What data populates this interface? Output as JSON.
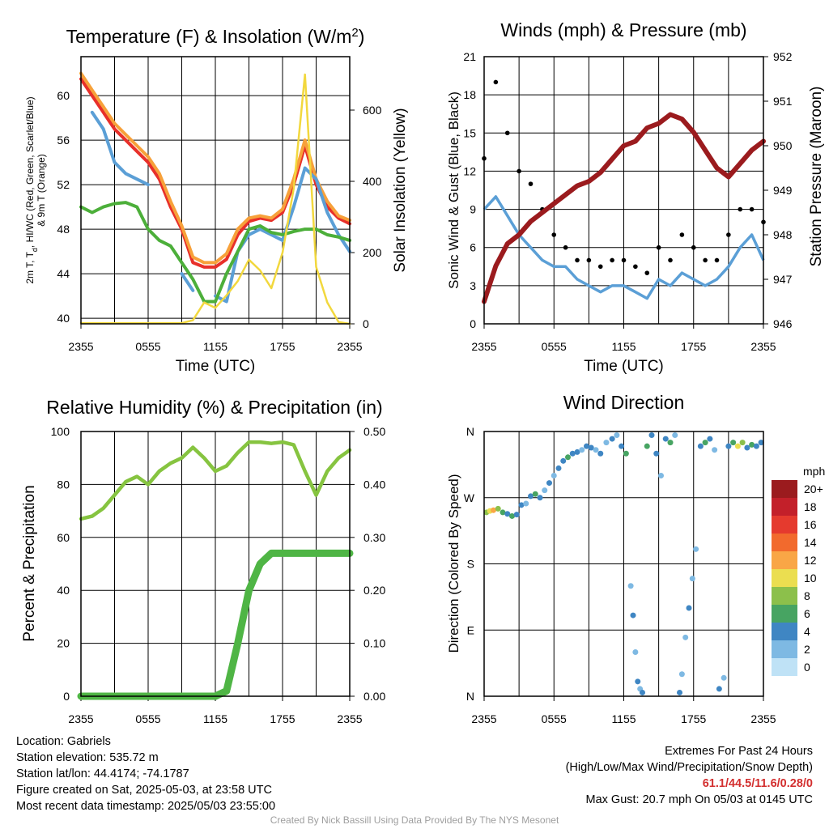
{
  "chart_data": [
    {
      "type": "line",
      "title_text": "Temperature (F) & Insolation (W/m",
      "title_sup": "2",
      "title_end": ")",
      "ylabel_lines": [
        "2m T, T",
        "d",
        ", HI/WC (Red, Green, Scarlet/Blue)",
        "& 9m T (Orange)"
      ],
      "y2label": "Solar Insolation (Yellow)",
      "xlabel": "Time (UTC)",
      "x_ticks": [
        "2355",
        "0555",
        "1155",
        "1755",
        "2355"
      ],
      "ylim": [
        39.5,
        63.5
      ],
      "y_ticks": [
        40,
        44,
        48,
        52,
        56,
        60
      ],
      "y2lim": [
        0,
        750
      ],
      "y2_ticks": [
        0,
        200,
        400,
        600
      ],
      "grid": true,
      "hours": [
        0,
        1,
        2,
        3,
        4,
        5,
        6,
        7,
        8,
        9,
        10,
        11,
        12,
        13,
        14,
        15,
        16,
        17,
        18,
        19,
        20,
        21,
        22,
        23,
        24
      ],
      "series": [
        {
          "color": "#e8302a",
          "axis": "left",
          "values": [
            61.5,
            60,
            58.5,
            57,
            56,
            55,
            54,
            52.5,
            50,
            48,
            45,
            44.6,
            44.6,
            45.3,
            47.5,
            48.7,
            49,
            48.8,
            49.5,
            52,
            55.5,
            52,
            50,
            49,
            48.5
          ]
        },
        {
          "color": "#f7a13a",
          "axis": "left",
          "values": [
            62,
            60.5,
            59,
            57.5,
            56.5,
            55.5,
            54.5,
            53,
            50.5,
            48.3,
            45.5,
            45,
            45,
            45.8,
            48,
            49,
            49.2,
            49,
            49.8,
            52.5,
            56,
            52.5,
            50.5,
            49.2,
            48.8
          ]
        },
        {
          "color": "#5b9fd6",
          "axis": "left",
          "values": [
            null,
            58.5,
            57,
            54,
            53,
            52.5,
            52,
            null,
            null,
            44,
            42.5,
            null,
            42,
            41.5,
            46,
            47.5,
            48,
            47.5,
            47,
            50,
            53.5,
            52.5,
            49.5,
            47.5,
            46
          ]
        },
        {
          "color": "#4caf3a",
          "axis": "left",
          "values": [
            50,
            49.5,
            50,
            50.3,
            50.4,
            50,
            48,
            47,
            46.5,
            45,
            43.5,
            41.5,
            41.5,
            44,
            46,
            48,
            48.3,
            47.7,
            47.5,
            47.8,
            48,
            48,
            47.5,
            47.3,
            47
          ]
        },
        {
          "color": "#f2d83e",
          "axis": "right",
          "values": [
            2,
            2,
            2,
            2,
            2,
            2,
            2,
            2,
            2,
            2,
            10,
            60,
            45,
            80,
            120,
            180,
            150,
            100,
            200,
            380,
            700,
            160,
            60,
            5,
            0
          ]
        }
      ]
    },
    {
      "type": "scatter",
      "title": "Winds (mph) & Pressure (mb)",
      "ylabel": "Sonic Wind & Gust (Blue, Black)",
      "y2label": "Station Pressure (Maroon)",
      "xlabel": "Time (UTC)",
      "x_ticks": [
        "2355",
        "0555",
        "1155",
        "1755",
        "2355"
      ],
      "ylim": [
        0,
        21
      ],
      "y_ticks": [
        0,
        3,
        6,
        9,
        12,
        15,
        18,
        21
      ],
      "y2lim": [
        946,
        952
      ],
      "y2_ticks": [
        946,
        947,
        948,
        949,
        950,
        951,
        952
      ],
      "grid": true,
      "hours": [
        0,
        1,
        2,
        3,
        4,
        5,
        6,
        7,
        8,
        9,
        10,
        11,
        12,
        13,
        14,
        15,
        16,
        17,
        18,
        19,
        20,
        21,
        22,
        23,
        24
      ],
      "wind_values": [
        9,
        10,
        8.5,
        7,
        6,
        5,
        4.5,
        4.5,
        3.5,
        3,
        2.5,
        3,
        3,
        2.5,
        2,
        3.5,
        3,
        4,
        3.5,
        3,
        3.5,
        4.5,
        6,
        7,
        5
      ],
      "gust_values": [
        13,
        19,
        15,
        12,
        11,
        9,
        7,
        6,
        5,
        5,
        4.5,
        5,
        5,
        4.5,
        4,
        6,
        5,
        7,
        6,
        5,
        5,
        7,
        9,
        9,
        8
      ],
      "pressure_values": [
        946.5,
        947.3,
        947.8,
        948.0,
        948.3,
        948.5,
        948.7,
        948.9,
        949.1,
        949.2,
        949.4,
        949.7,
        950.0,
        950.1,
        950.4,
        950.5,
        950.7,
        950.6,
        950.3,
        949.9,
        949.5,
        949.3,
        949.6,
        949.9,
        950.1
      ]
    },
    {
      "type": "line",
      "title": "Relative Humidity (%) & Precipitation (in)",
      "ylabel": "Percent & Precipitation",
      "xlabel": "",
      "x_ticks": [
        "2355",
        "0555",
        "1155",
        "1755",
        "2355"
      ],
      "ylim": [
        0,
        100
      ],
      "y_ticks": [
        0,
        20,
        40,
        60,
        80,
        100
      ],
      "y2lim": [
        0,
        0.5
      ],
      "y2_ticks": [
        "0.00",
        "0.10",
        "0.20",
        "0.30",
        "0.40",
        "0.50"
      ],
      "grid": true,
      "hours": [
        0,
        1,
        2,
        3,
        4,
        5,
        6,
        7,
        8,
        9,
        10,
        11,
        12,
        13,
        14,
        15,
        16,
        17,
        18,
        19,
        20,
        21,
        22,
        23,
        24
      ],
      "series": [
        {
          "name": "",
          "color": "#86c440",
          "axis": "left",
          "values": [
            67,
            68,
            71,
            76,
            81,
            83,
            80,
            85,
            88,
            90,
            94,
            90,
            85,
            87,
            92,
            96,
            96,
            95.5,
            96,
            95,
            85,
            76,
            85,
            90,
            93
          ]
        },
        {
          "name": "",
          "color": "#4fb545",
          "axis": "right",
          "values": [
            0,
            0,
            0,
            0,
            0,
            0,
            0,
            0,
            0,
            0,
            0,
            0,
            0,
            0.01,
            0.1,
            0.2,
            0.25,
            0.27,
            0.27,
            0.27,
            0.27,
            0.27,
            0.27,
            0.27,
            0.27
          ]
        }
      ]
    },
    {
      "type": "scatter",
      "title": "Wind Direction",
      "ylabel": "Direction (Colored By Speed)",
      "xlabel": "",
      "x_ticks": [
        "2355",
        "0555",
        "1155",
        "1755",
        "2355"
      ],
      "y_ticks": [
        "N",
        "E",
        "S",
        "W",
        "N"
      ],
      "y_degrees": [
        0,
        90,
        180,
        270,
        360
      ],
      "grid": true,
      "legend_placement": "right",
      "legend_title": "mph",
      "legend_labels": [
        "20+",
        "18",
        "16",
        "14",
        "12",
        "10",
        "8",
        "6",
        "4",
        "2",
        "0"
      ],
      "legend_colors": [
        "#9b1b1e",
        "#c3202a",
        "#e53a2e",
        "#f26a2d",
        "#f9a646",
        "#ebde50",
        "#8cc04b",
        "#47a462",
        "#3f86c3",
        "#7eb9e3",
        "#bfe2f6"
      ],
      "points": [
        [
          0.2,
          250,
          8
        ],
        [
          0.5,
          252,
          10
        ],
        [
          0.8,
          253,
          12
        ],
        [
          1.2,
          255,
          8
        ],
        [
          1.6,
          250,
          6
        ],
        [
          2.0,
          248,
          4
        ],
        [
          2.4,
          245,
          6
        ],
        [
          2.8,
          247,
          4
        ],
        [
          3.2,
          260,
          4
        ],
        [
          3.6,
          262,
          2
        ],
        [
          4.0,
          272,
          4
        ],
        [
          4.4,
          275,
          6
        ],
        [
          4.8,
          270,
          4
        ],
        [
          5.2,
          280,
          2
        ],
        [
          5.6,
          290,
          4
        ],
        [
          6.0,
          300,
          2
        ],
        [
          6.4,
          310,
          4
        ],
        [
          6.8,
          320,
          4
        ],
        [
          7.2,
          325,
          6
        ],
        [
          7.6,
          330,
          4
        ],
        [
          8.0,
          332,
          4
        ],
        [
          8.4,
          335,
          2
        ],
        [
          8.8,
          340,
          4
        ],
        [
          9.2,
          338,
          4
        ],
        [
          9.6,
          335,
          2
        ],
        [
          10.0,
          330,
          4
        ],
        [
          10.5,
          345,
          2
        ],
        [
          11.0,
          350,
          4
        ],
        [
          11.4,
          355,
          2
        ],
        [
          11.8,
          340,
          4
        ],
        [
          12.2,
          330,
          6
        ],
        [
          12.6,
          150,
          2
        ],
        [
          12.8,
          110,
          4
        ],
        [
          13.0,
          60,
          2
        ],
        [
          13.2,
          20,
          4
        ],
        [
          13.4,
          10,
          2
        ],
        [
          13.6,
          5,
          4
        ],
        [
          14.0,
          340,
          6
        ],
        [
          14.4,
          355,
          4
        ],
        [
          14.8,
          330,
          4
        ],
        [
          15.2,
          300,
          2
        ],
        [
          15.6,
          350,
          4
        ],
        [
          16.0,
          345,
          6
        ],
        [
          16.4,
          355,
          2
        ],
        [
          16.8,
          5,
          4
        ],
        [
          17.0,
          30,
          2
        ],
        [
          17.3,
          80,
          2
        ],
        [
          17.6,
          120,
          4
        ],
        [
          17.9,
          160,
          2
        ],
        [
          18.2,
          200,
          2
        ],
        [
          18.6,
          340,
          4
        ],
        [
          19.0,
          345,
          6
        ],
        [
          19.4,
          350,
          4
        ],
        [
          19.8,
          335,
          2
        ],
        [
          20.2,
          10,
          4
        ],
        [
          20.6,
          25,
          2
        ],
        [
          21.0,
          340,
          4
        ],
        [
          21.4,
          345,
          6
        ],
        [
          21.8,
          340,
          10
        ],
        [
          22.2,
          345,
          8
        ],
        [
          22.6,
          338,
          4
        ],
        [
          23.0,
          342,
          6
        ],
        [
          23.4,
          340,
          4
        ],
        [
          23.8,
          345,
          4
        ]
      ]
    }
  ],
  "footer": {
    "location": "Location: Gabriels",
    "elevation": "Station elevation: 535.72 m",
    "latlon": "Station lat/lon: 44.4174; -74.1787",
    "created": "Figure created on Sat, 2025-05-03, at 23:58 UTC",
    "recent": "Most recent data timestamp: 2025/05/03 23:55:00",
    "extremes_title": "Extremes For Past 24 Hours",
    "extremes_desc": "(High/Low/Max Wind/Precipitation/Snow Depth)",
    "extremes_values": "61.1/44.5/11.6/0.28/0",
    "max_gust": "Max Gust: 20.7 mph On 05/03 at 0145 UTC",
    "credit": "Created By Nick Bassill Using Data Provided By The NYS Mesonet"
  }
}
